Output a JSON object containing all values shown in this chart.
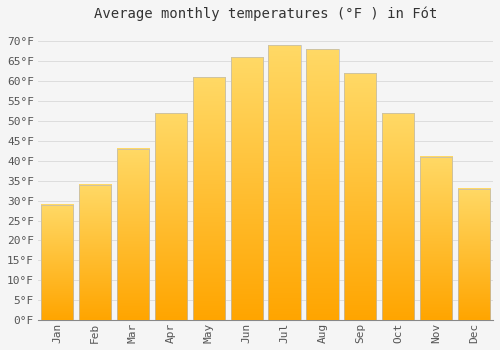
{
  "title": "Average monthly temperatures (°F ) in Fót",
  "months": [
    "Jan",
    "Feb",
    "Mar",
    "Apr",
    "May",
    "Jun",
    "Jul",
    "Aug",
    "Sep",
    "Oct",
    "Nov",
    "Dec"
  ],
  "values": [
    29,
    34,
    43,
    52,
    61,
    66,
    69,
    68,
    62,
    52,
    41,
    33
  ],
  "bar_color_bottom": "#FFA500",
  "bar_color_top": "#FFD966",
  "bar_edge_color": "#BBBBBB",
  "background_color": "#F5F5F5",
  "plot_bg_color": "#F5F5F5",
  "grid_color": "#DDDDDD",
  "text_color": "#555555",
  "title_color": "#333333",
  "ylim": [
    0,
    73
  ],
  "yticks": [
    0,
    5,
    10,
    15,
    20,
    25,
    30,
    35,
    40,
    45,
    50,
    55,
    60,
    65,
    70
  ],
  "title_fontsize": 10,
  "tick_fontsize": 8,
  "font_family": "monospace",
  "bar_width": 0.85
}
